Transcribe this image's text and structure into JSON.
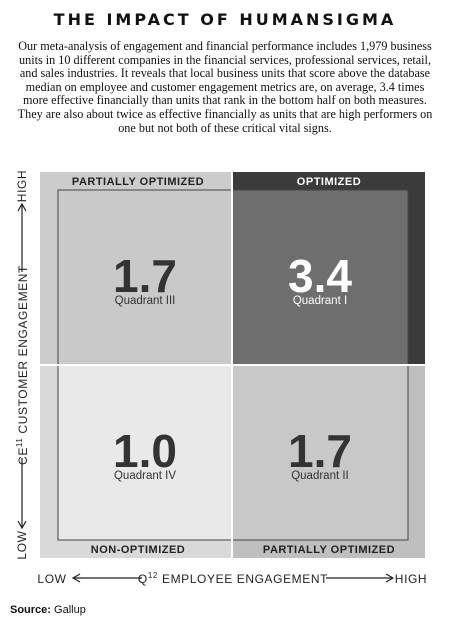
{
  "header": {
    "title": "THE IMPACT OF HUMANSIGMA",
    "text": "Our meta-analysis of engagement and financial performance includes 1,979 business units in 10 different companies in the financial services, professional services, retail, and sales industries. It reveals that local business units that score above the database median on employee and customer engagement metrics are, on average, 3.4 times more effective financially than units that rank in the bottom half on both measures. They are also about twice as effective financially as units that are high performers on one but not both of these critical vital signs."
  },
  "quadrants": [
    {
      "header": "PARTIALLY OPTIMIZED",
      "value": "1.7",
      "name": "Quadrant III"
    },
    {
      "header": "OPTIMIZED",
      "value": "3.4",
      "name": "Quadrant I"
    },
    {
      "header": "NON-OPTIMIZED",
      "value": "1.0",
      "name": "Quadrant IV"
    },
    {
      "header": "PARTIALLY OPTIMIZED",
      "value": "1.7",
      "name": "Quadrant II"
    }
  ],
  "y_axis": {
    "prefix": "CE",
    "superscript": "11",
    "label": "CUSTOMER ENGAGEMENT",
    "high": "HIGH",
    "low": "LOW"
  },
  "x_axis": {
    "prefix": "Q",
    "superscript": "12",
    "label": "EMPLOYEE ENGAGEMENT",
    "low": "LOW",
    "high": "HIGH"
  },
  "footer": {
    "source_label": "Source:",
    "source": "Gallup"
  }
}
